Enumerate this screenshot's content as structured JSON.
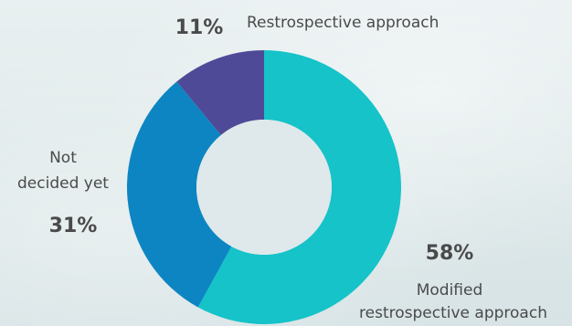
{
  "chart_data": {
    "type": "pie",
    "series": [
      {
        "values": [
          58,
          31,
          11
        ],
        "labels": [
          "Modified restrospective approach",
          "Not decided yet",
          "Restrospective approach"
        ],
        "percent_labels": [
          "58%",
          "31%",
          "11%"
        ],
        "colors": [
          "#15c3c9",
          "#0d85c2",
          "#4f4a98"
        ]
      }
    ],
    "donut": true,
    "start_angle_deg": 0,
    "direction": "clockwise",
    "legend": "none",
    "annotations": [
      {
        "slice": 2,
        "percent": "11%",
        "text_lines": [
          "Restrospective approach"
        ]
      },
      {
        "slice": 1,
        "percent": "31%",
        "text_lines": [
          "Not",
          "decided yet"
        ]
      },
      {
        "slice": 0,
        "percent": "58%",
        "text_lines": [
          "Modified",
          "restrospective approach"
        ]
      }
    ]
  }
}
